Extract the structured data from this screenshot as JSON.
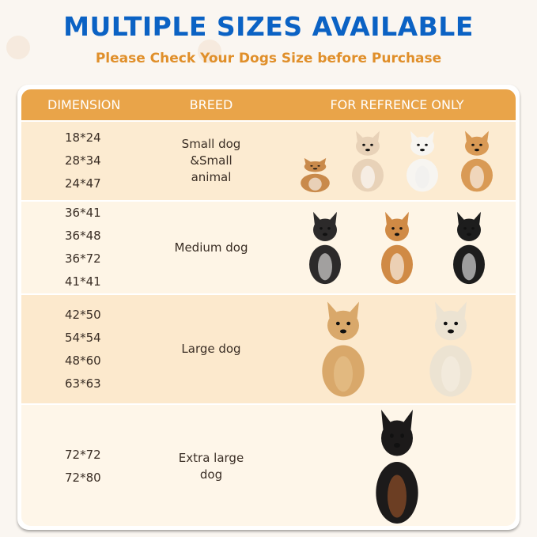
{
  "title": "MULTIPLE SIZES AVAILABLE",
  "subtitle": "Please Check Your Dogs Size before Purchase",
  "colors": {
    "title": "#0b62c4",
    "subtitle": "#e08f2a",
    "header": "#e9a449"
  },
  "table": {
    "headers": [
      "DIMENSION",
      "BREED",
      "FOR REFRENCE ONLY"
    ],
    "rows": [
      {
        "dimensions": [
          "18*24",
          "28*34",
          "24*47"
        ],
        "breed": "Small dog &Small animal",
        "images": [
          "guinea-pig",
          "chihuahua",
          "bichon-frise",
          "corgi"
        ]
      },
      {
        "dimensions": [
          "36*41",
          "36*48",
          "36*72",
          "41*41"
        ],
        "breed": "Medium dog",
        "images": [
          "french-bulldog",
          "shiba-inu",
          "border-collie"
        ]
      },
      {
        "dimensions": [
          "42*50",
          "54*54",
          "48*60",
          "63*63"
        ],
        "breed": "Large dog",
        "images": [
          "golden-retriever",
          "labrador"
        ]
      },
      {
        "dimensions": [
          "72*72",
          "72*80"
        ],
        "breed": "Extra large dog",
        "images": [
          "doberman"
        ]
      }
    ]
  }
}
